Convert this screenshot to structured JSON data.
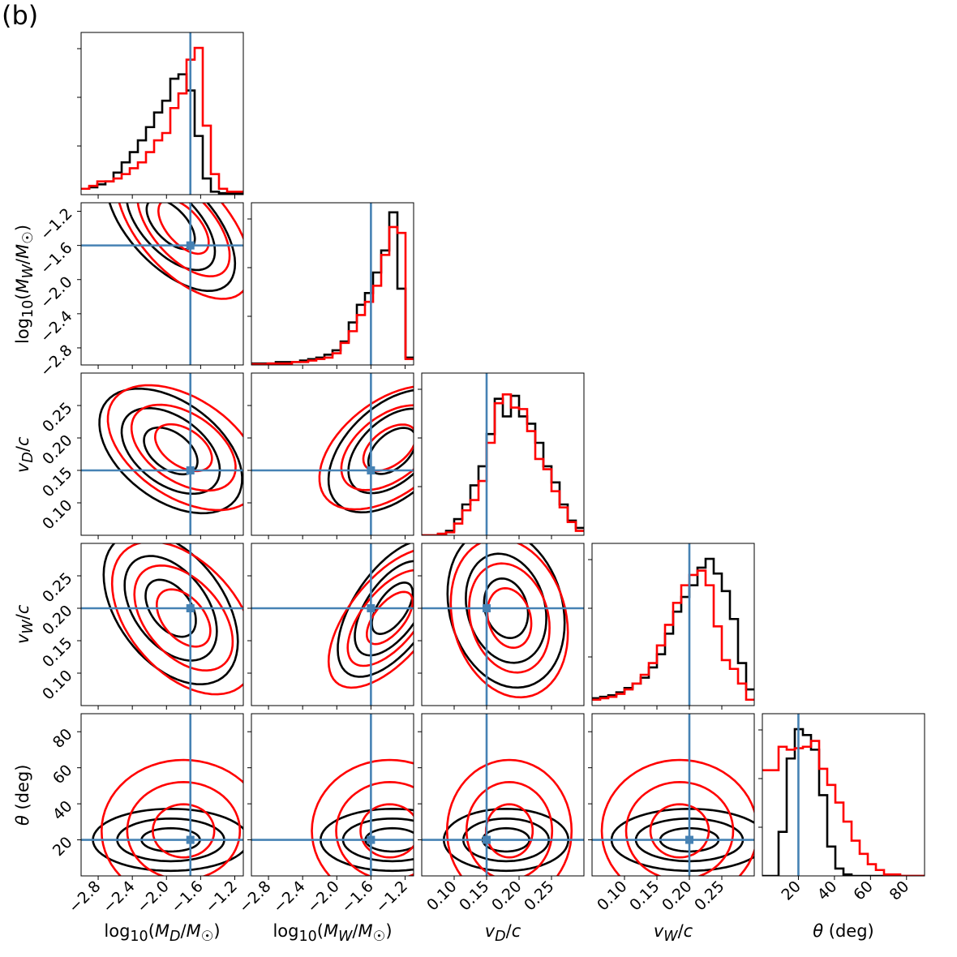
{
  "figure": {
    "panel_label": "(b)"
  },
  "colors": {
    "black": "#000000",
    "red": "#ff0000",
    "truth": "#4682b4"
  },
  "chart_data": {
    "type": "corner",
    "parameters": [
      {
        "key": "logMD",
        "label": "log10(M_D/M_sun)",
        "range": [
          -3.0,
          -1.1
        ],
        "ticks": [
          -2.8,
          -2.4,
          -2.0,
          -1.6,
          -1.2
        ],
        "tick_labels": [
          "−2.8",
          "−2.4",
          "−2.0",
          "−1.6",
          "−1.2"
        ],
        "truth": -1.72
      },
      {
        "key": "logMW",
        "label": "log10(M_W/M_sun)",
        "range": [
          -3.0,
          -1.1
        ],
        "ticks": [
          -2.8,
          -2.4,
          -2.0,
          -1.6,
          -1.2
        ],
        "tick_labels": [
          "−2.8",
          "−2.4",
          "−2.0",
          "−1.6",
          "−1.2"
        ],
        "truth": -1.6
      },
      {
        "key": "vD",
        "label": "v_D/c",
        "range": [
          0.05,
          0.3
        ],
        "ticks": [
          0.1,
          0.15,
          0.2,
          0.25
        ],
        "tick_labels": [
          "0.10",
          "0.15",
          "0.20",
          "0.25"
        ],
        "truth": 0.15
      },
      {
        "key": "vW",
        "label": "v_W/c",
        "range": [
          0.05,
          0.3
        ],
        "ticks": [
          0.1,
          0.15,
          0.2,
          0.25
        ],
        "tick_labels": [
          "0.10",
          "0.15",
          "0.20",
          "0.25"
        ],
        "truth": 0.2
      },
      {
        "key": "theta",
        "label": "θ (deg)",
        "range": [
          0,
          90
        ],
        "ticks": [
          20,
          40,
          60,
          80
        ],
        "tick_labels": [
          "20",
          "40",
          "60",
          "80"
        ],
        "truth": 20
      }
    ],
    "axis_labels": {
      "x": [
        "log10(MD/M☉)",
        "log10(MW/M☉)",
        "vD/c",
        "vW/c",
        "θ (deg)"
      ],
      "y": [
        "log10(MW/M☉)",
        "vD/c",
        "vW/c",
        "θ (deg)"
      ]
    },
    "histograms": [
      {
        "param": "logMD",
        "bins": 20,
        "black": [
          0.04,
          0.05,
          0.07,
          0.09,
          0.15,
          0.22,
          0.29,
          0.37,
          0.46,
          0.56,
          0.64,
          0.79,
          0.82,
          0.71,
          0.4,
          0.11,
          0.02,
          0.01,
          0.01,
          0.01
        ],
        "red": [
          0.04,
          0.06,
          0.09,
          0.09,
          0.11,
          0.14,
          0.18,
          0.22,
          0.29,
          0.37,
          0.42,
          0.59,
          0.69,
          0.92,
          1.0,
          0.47,
          0.14,
          0.04,
          0.02,
          0.02
        ]
      },
      {
        "param": "logMW",
        "bins": 20,
        "black": [
          0.01,
          0.01,
          0.01,
          0.02,
          0.02,
          0.02,
          0.03,
          0.04,
          0.05,
          0.07,
          0.1,
          0.16,
          0.29,
          0.41,
          0.49,
          0.63,
          0.78,
          1.04,
          0.52,
          0.05
        ],
        "red": [
          0.005,
          0.005,
          0.01,
          0.01,
          0.01,
          0.02,
          0.02,
          0.03,
          0.04,
          0.05,
          0.08,
          0.15,
          0.23,
          0.34,
          0.43,
          0.54,
          0.75,
          0.94,
          0.9,
          0.04
        ]
      },
      {
        "param": "vD",
        "bins": 20,
        "black": [
          0.0,
          0.0,
          0.01,
          0.03,
          0.11,
          0.21,
          0.34,
          0.47,
          0.69,
          0.93,
          0.81,
          0.95,
          0.81,
          0.76,
          0.63,
          0.47,
          0.36,
          0.21,
          0.1,
          0.05
        ],
        "red": [
          0.0,
          0.0,
          0.01,
          0.02,
          0.08,
          0.17,
          0.24,
          0.37,
          0.63,
          0.9,
          0.96,
          0.87,
          0.86,
          0.71,
          0.52,
          0.45,
          0.3,
          0.19,
          0.09,
          0.03
        ],
        "max": 1.0
      },
      {
        "param": "vW",
        "bins": 20,
        "black": [
          0.05,
          0.06,
          0.07,
          0.09,
          0.12,
          0.15,
          0.19,
          0.26,
          0.35,
          0.49,
          0.64,
          0.74,
          0.82,
          0.94,
          1.0,
          0.9,
          0.78,
          0.59,
          0.29,
          0.11
        ],
        "red": [
          0.04,
          0.05,
          0.06,
          0.08,
          0.11,
          0.15,
          0.21,
          0.29,
          0.41,
          0.55,
          0.7,
          0.82,
          0.89,
          0.92,
          0.82,
          0.54,
          0.31,
          0.25,
          0.15,
          0.04
        ]
      },
      {
        "param": "theta",
        "bins": 20,
        "black": [
          0.0,
          0.0,
          0.3,
          0.8,
          1.0,
          0.96,
          0.86,
          0.55,
          0.2,
          0.05,
          0.01,
          0.0,
          0.0,
          0.0,
          0.0,
          0.0,
          0.0,
          0.0,
          0.0,
          0.0
        ],
        "red": [
          0.72,
          0.72,
          0.88,
          0.86,
          0.87,
          0.88,
          0.92,
          0.73,
          0.62,
          0.5,
          0.37,
          0.24,
          0.15,
          0.08,
          0.04,
          0.01,
          0.01,
          0.0,
          0.0,
          0.0
        ]
      }
    ],
    "posteriors": [
      {
        "param": "logMD",
        "black": {
          "mean": -1.95,
          "sd": 0.38,
          "skew": -3
        },
        "red": {
          "mean": -1.8,
          "sd": 0.4,
          "skew": -3
        }
      },
      {
        "param": "logMW",
        "black": {
          "mean": -1.35,
          "sd": 0.35,
          "skew": -6
        },
        "red": {
          "mean": -1.38,
          "sd": 0.38,
          "skew": -6
        }
      },
      {
        "param": "vD",
        "black": {
          "mean": 0.18,
          "sd": 0.04
        },
        "red": {
          "mean": 0.185,
          "sd": 0.04
        }
      },
      {
        "param": "vW",
        "black": {
          "mean": 0.2,
          "sd": 0.05
        },
        "red": {
          "mean": 0.185,
          "sd": 0.05
        }
      },
      {
        "param": "theta",
        "black": {
          "mean": 20,
          "sd": 7
        },
        "red": {
          "mean": 25,
          "sd": 16
        }
      }
    ],
    "contour_levels": [
      0.3,
      0.55,
      0.8
    ],
    "series": [
      {
        "name": "black posterior",
        "color": "#000000"
      },
      {
        "name": "red posterior",
        "color": "#ff0000"
      }
    ],
    "truth_color": "#4682b4"
  }
}
